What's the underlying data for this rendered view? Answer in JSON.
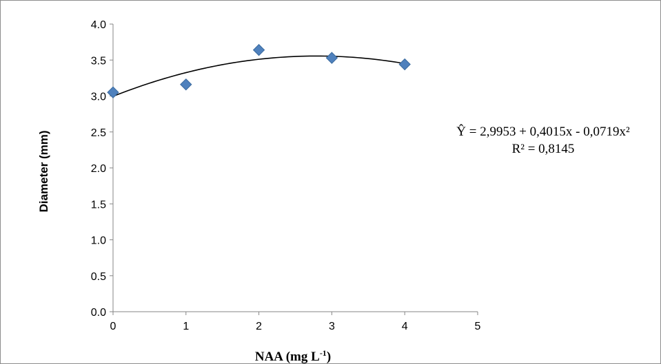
{
  "chart_data": {
    "type": "scatter",
    "xlabel_main": "NAA (mg L",
    "xlabel_sup": "-1",
    "xlabel_end": ")",
    "ylabel": "Diameter  (mm)",
    "xlim": [
      0,
      5
    ],
    "ylim": [
      0.0,
      4.0
    ],
    "x_ticks": [
      "0",
      "1",
      "2",
      "3",
      "4",
      "5"
    ],
    "y_ticks": [
      "0.0",
      "0.5",
      "1.0",
      "1.5",
      "2.0",
      "2.5",
      "3.0",
      "3.5",
      "4.0"
    ],
    "x_tick_values": [
      0,
      1,
      2,
      3,
      4,
      5
    ],
    "y_tick_values": [
      0,
      0.5,
      1.0,
      1.5,
      2.0,
      2.5,
      3.0,
      3.5,
      4.0
    ],
    "points": [
      {
        "x": 0,
        "y": 3.05
      },
      {
        "x": 1,
        "y": 3.16
      },
      {
        "x": 2,
        "y": 3.64
      },
      {
        "x": 3,
        "y": 3.53
      },
      {
        "x": 4,
        "y": 3.44
      }
    ],
    "trendline": {
      "type": "polynomial",
      "coefficients": [
        2.9953,
        0.4015,
        -0.0719
      ],
      "x_range": [
        0,
        4
      ]
    },
    "equation": "Ŷ = 2,9953 + 0,4015x  - 0,0719x²",
    "r_squared": "R² = 0,8145",
    "marker_color": "#4f81bd",
    "marker_stroke": "#3a6a9e",
    "trend_color": "#000000",
    "grid": false
  }
}
